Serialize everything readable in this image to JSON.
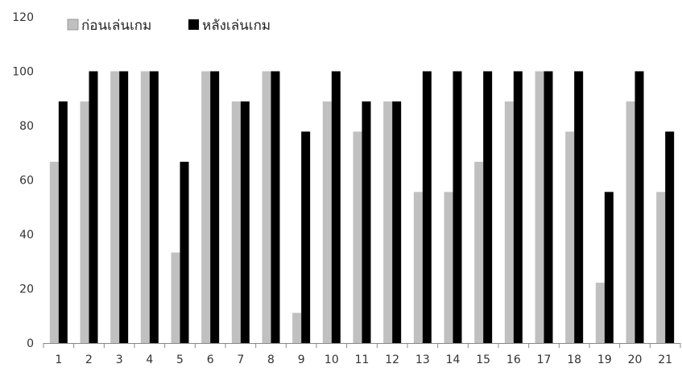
{
  "chart_data": {
    "type": "bar",
    "title": "",
    "xlabel": "",
    "ylabel": "",
    "categories": [
      "1",
      "2",
      "3",
      "4",
      "5",
      "6",
      "7",
      "8",
      "9",
      "10",
      "11",
      "12",
      "13",
      "14",
      "15",
      "16",
      "17",
      "18",
      "19",
      "20",
      "21"
    ],
    "series": [
      {
        "name": "ก่อนเล่นเกม",
        "color": "#c0c0c0",
        "values": [
          66.7,
          88.9,
          100,
          100,
          33.3,
          100,
          88.9,
          100,
          11.1,
          88.9,
          77.8,
          88.9,
          55.6,
          55.6,
          66.7,
          88.9,
          100,
          77.8,
          22.2,
          88.9,
          55.6
        ]
      },
      {
        "name": "หลังเล่นเกม",
        "color": "#000000",
        "values": [
          88.9,
          100,
          100,
          100,
          66.7,
          100,
          88.9,
          100,
          77.8,
          100,
          88.9,
          88.9,
          100,
          100,
          100,
          100,
          100,
          100,
          55.6,
          100,
          77.8
        ]
      }
    ],
    "ylim": [
      0,
      120
    ],
    "yticks": [
      0,
      20,
      40,
      60,
      80,
      100,
      120
    ],
    "grid": false,
    "legend_position": "top-left"
  }
}
